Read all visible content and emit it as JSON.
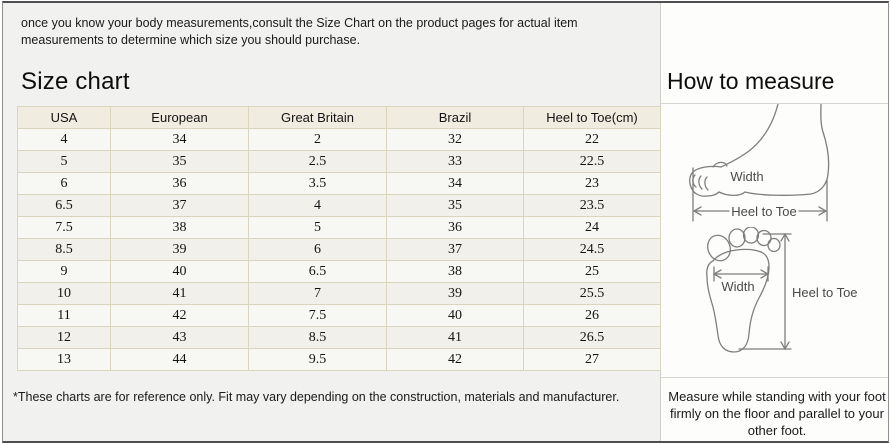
{
  "intro": "once you know your body measurements,consult the Size Chart on the product pages for actual item measurements to determine which size you should purchase.",
  "size_chart": {
    "title": "Size chart",
    "columns": [
      "USA",
      "European",
      "Great Britain",
      "Brazil",
      "Heel to Toe(cm)"
    ],
    "rows": [
      [
        "4",
        "34",
        "2",
        "32",
        "22"
      ],
      [
        "5",
        "35",
        "2.5",
        "33",
        "22.5"
      ],
      [
        "6",
        "36",
        "3.5",
        "34",
        "23"
      ],
      [
        "6.5",
        "37",
        "4",
        "35",
        "23.5"
      ],
      [
        "7.5",
        "38",
        "5",
        "36",
        "24"
      ],
      [
        "8.5",
        "39",
        "6",
        "37",
        "24.5"
      ],
      [
        "9",
        "40",
        "6.5",
        "38",
        "25"
      ],
      [
        "10",
        "41",
        "7",
        "39",
        "25.5"
      ],
      [
        "11",
        "42",
        "7.5",
        "40",
        "26"
      ],
      [
        "12",
        "43",
        "8.5",
        "41",
        "26.5"
      ],
      [
        "13",
        "44",
        "9.5",
        "42",
        "27"
      ]
    ],
    "footnote": "*These charts are for reference only. Fit may vary depending on the construction, materials and manufacturer."
  },
  "how_to_measure": {
    "title": "How to measure",
    "side_view": {
      "width_label": "Width",
      "heel_to_toe_label": "Heel to Toe"
    },
    "top_view": {
      "width_label": "Width",
      "heel_to_toe_label": "Heel to Toe"
    },
    "instruction": "Measure while standing with your foot firmly on the floor and parallel to your other foot."
  },
  "colors": {
    "page_bg": "#f1f1ef",
    "panel_bg": "#fdfdfc",
    "table_border": "#d9d6bd",
    "table_header_bg": "#f0ecdf",
    "row_bg": "#f7f7f4",
    "row_alt_bg": "#f1f0eb",
    "diagram_stroke": "#7e7e7e"
  },
  "chart_data": {
    "type": "table",
    "title": "Size chart",
    "columns": [
      "USA",
      "European",
      "Great Britain",
      "Brazil",
      "Heel to Toe(cm)"
    ],
    "rows": [
      [
        "4",
        "34",
        "2",
        "32",
        "22"
      ],
      [
        "5",
        "35",
        "2.5",
        "33",
        "22.5"
      ],
      [
        "6",
        "36",
        "3.5",
        "34",
        "23"
      ],
      [
        "6.5",
        "37",
        "4",
        "35",
        "23.5"
      ],
      [
        "7.5",
        "38",
        "5",
        "36",
        "24"
      ],
      [
        "8.5",
        "39",
        "6",
        "37",
        "24.5"
      ],
      [
        "9",
        "40",
        "6.5",
        "38",
        "25"
      ],
      [
        "10",
        "41",
        "7",
        "39",
        "25.5"
      ],
      [
        "11",
        "42",
        "7.5",
        "40",
        "26"
      ],
      [
        "12",
        "43",
        "8.5",
        "41",
        "26.5"
      ],
      [
        "13",
        "44",
        "9.5",
        "42",
        "27"
      ]
    ]
  }
}
